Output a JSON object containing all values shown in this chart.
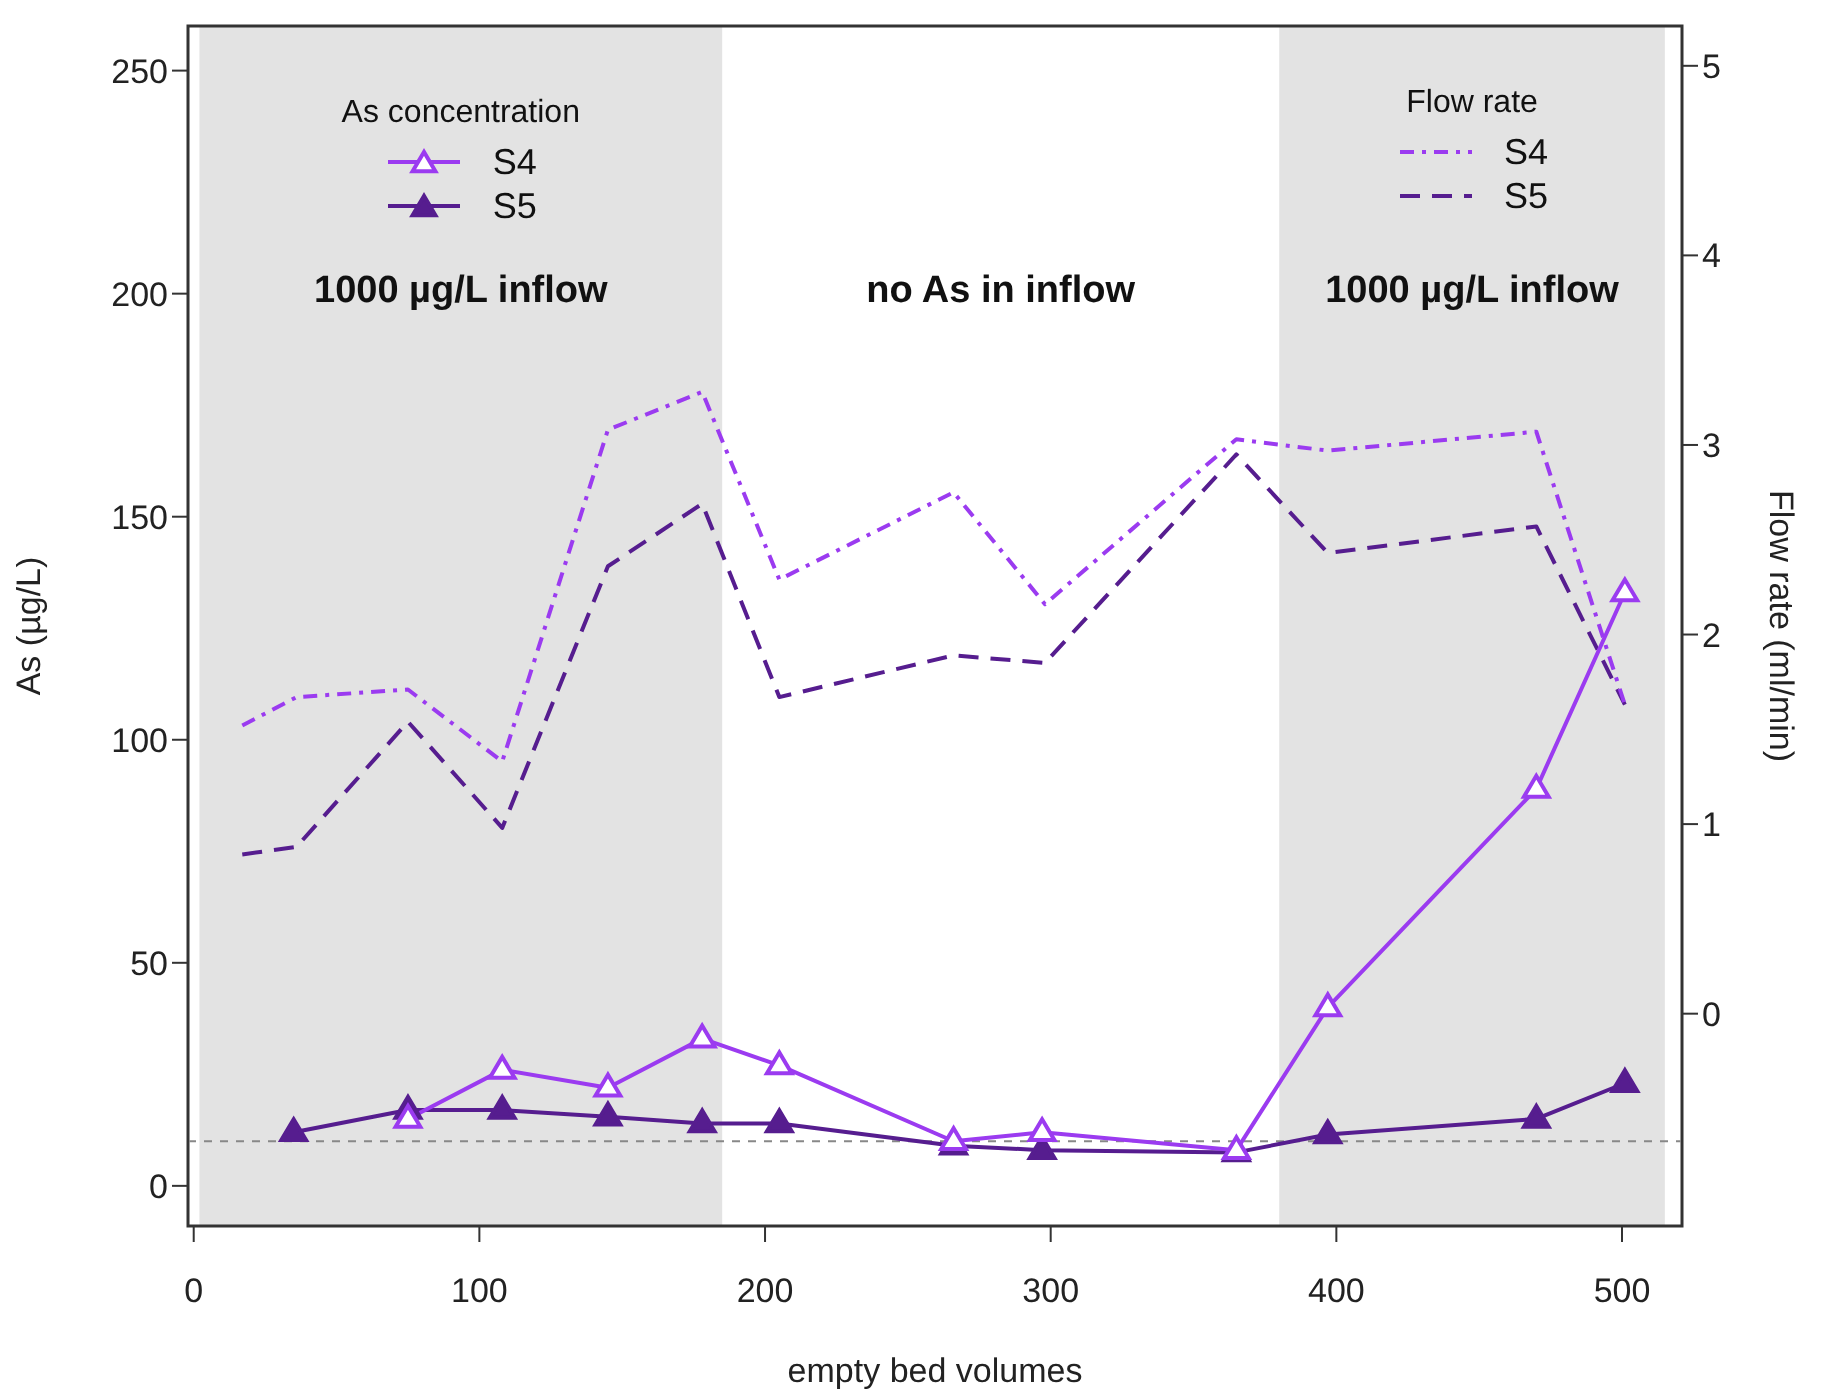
{
  "chart_data": {
    "type": "line",
    "xlabel": "empty bed volumes",
    "ylabel": "As (µg/L)",
    "y2label": "Flow rate (ml/min)",
    "legend_title": [
      "As concentration",
      "Flow rate"
    ],
    "legend": "top",
    "xlim": [
      -2,
      521
    ],
    "xticks": [
      0,
      100,
      200,
      300,
      400,
      500
    ],
    "ylim": [
      -9,
      260
    ],
    "yticks": [
      0,
      50,
      100,
      150,
      200,
      250
    ],
    "y2lim": [
      -1.12,
      5.21
    ],
    "y2ticks": [
      0,
      1,
      2,
      3,
      4,
      5
    ],
    "bands": [
      {
        "axis": "x",
        "from": 2,
        "to": 185,
        "label": "1000 µg/L inflow",
        "color": "#e3e3e3"
      },
      {
        "axis": "x",
        "from": 380,
        "to": 515,
        "label": "1000 µg/L inflow",
        "color": "#e3e3e3"
      }
    ],
    "ref_lines": [
      {
        "axis": "y",
        "value": 10,
        "color": "#888888",
        "line_style": "dashed"
      }
    ],
    "annotations": [
      "no As in inflow"
    ],
    "series": [
      {
        "name": "S4",
        "color": "#9b3bf0",
        "marker": "triangle",
        "line_style": "solid",
        "x": [
          75,
          108,
          145,
          178,
          205,
          266,
          297,
          365,
          397,
          470,
          501
        ],
        "values": [
          15,
          26,
          22,
          33,
          27,
          10,
          12,
          8,
          40,
          89,
          133
        ]
      },
      {
        "name": "S5",
        "color": "#561d8f",
        "marker": "triangle",
        "line_style": "solid",
        "x": [
          35,
          75,
          108,
          145,
          178,
          205,
          266,
          297,
          365,
          397,
          470,
          501
        ],
        "values": [
          12,
          17,
          17,
          15.5,
          14,
          14,
          9,
          8,
          7.5,
          11.5,
          15,
          23
        ]
      },
      {
        "name": "S4",
        "color": "#9b3bf0",
        "axis": "y2",
        "marker": "none",
        "line_style": "dotted",
        "x": [
          17,
          36,
          75,
          108,
          145,
          178,
          205,
          266,
          298,
          365,
          397,
          470,
          501
        ],
        "values": [
          1.52,
          1.67,
          1.71,
          1.33,
          3.08,
          3.28,
          2.29,
          2.75,
          2.16,
          3.03,
          2.97,
          3.07,
          1.63
        ]
      },
      {
        "name": "S5",
        "color": "#561d8f",
        "axis": "y2",
        "marker": "none",
        "line_style": "dashed",
        "x": [
          17,
          36,
          75,
          108,
          145,
          178,
          205,
          266,
          298,
          365,
          397,
          470,
          501
        ],
        "values": [
          0.84,
          0.88,
          1.54,
          0.98,
          2.36,
          2.69,
          1.67,
          1.89,
          1.85,
          2.95,
          2.43,
          2.57,
          1.63
        ]
      }
    ]
  }
}
